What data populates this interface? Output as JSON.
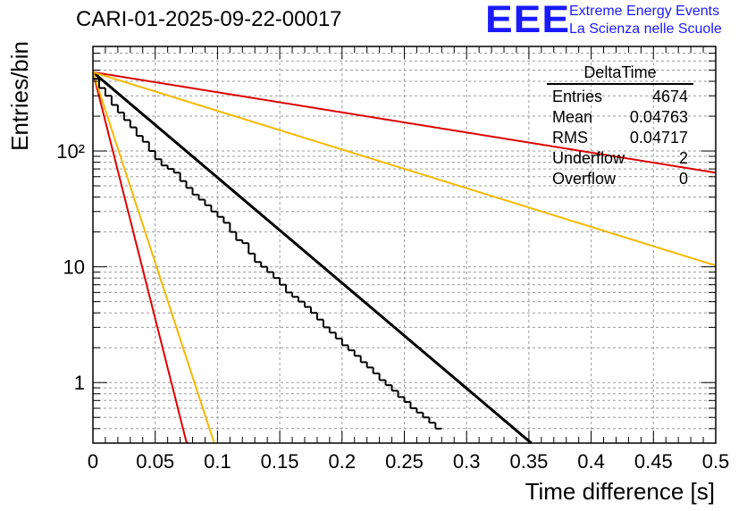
{
  "header": {
    "title": "CARI-01-2025-09-22-00017",
    "logo": "EEE",
    "logo_line1": "Extreme Energy Events",
    "logo_line2": "La Scienza nelle Scuole",
    "logo_color": "#1a1aff"
  },
  "stats": {
    "title": "DeltaTime",
    "rows": [
      {
        "label": "Entries",
        "value": "4674"
      },
      {
        "label": "Mean",
        "value": "0.04763"
      },
      {
        "label": "RMS",
        "value": "0.04717"
      },
      {
        "label": "Underflow",
        "value": "2"
      },
      {
        "label": "Overflow",
        "value": "0"
      }
    ]
  },
  "chart_data": {
    "type": "histogram",
    "title": "CARI-01-2025-09-22-00017",
    "xlabel": "Time difference [s]",
    "ylabel": "Entries/bin",
    "xlim": [
      0,
      0.5
    ],
    "ylim": [
      0.3,
      800
    ],
    "yscale": "log",
    "grid": true,
    "xticks": [
      "0",
      "0.05",
      "0.1",
      "0.15",
      "0.2",
      "0.25",
      "0.3",
      "0.35",
      "0.4",
      "0.45",
      "0.5"
    ],
    "xtick_values": [
      0,
      0.05,
      0.1,
      0.15,
      0.2,
      0.25,
      0.3,
      0.35,
      0.4,
      0.45,
      0.5
    ],
    "yticks": [
      "1",
      "10",
      "10²"
    ],
    "ytick_values": [
      1,
      10,
      100
    ],
    "bin_width": 0.005,
    "bins": [
      420,
      350,
      300,
      250,
      215,
      185,
      160,
      135,
      120,
      100,
      85,
      75,
      70,
      65,
      55,
      48,
      42,
      38,
      34,
      30,
      27,
      24,
      20,
      17,
      16,
      13,
      11,
      10,
      9,
      8,
      7,
      6,
      5.5,
      5,
      4.5,
      4,
      3.5,
      3,
      2.7,
      2.4,
      2.1,
      1.9,
      1.7,
      1.5,
      1.35,
      1.2,
      1.05,
      0.95,
      0.85,
      0.75,
      0.68,
      0.6,
      0.55,
      0.5,
      0.45,
      0.4
    ],
    "series": [
      {
        "name": "data",
        "color": "#000000"
      },
      {
        "name": "fit",
        "color": "#000000",
        "a": 480,
        "tau": 0.0477,
        "x_end": 0.352
      },
      {
        "name": "red-slow",
        "color": "#dd0000",
        "a": 480,
        "tau": 0.25
      },
      {
        "name": "yellow-slow",
        "color": "#f5b800",
        "a": 480,
        "tau": 0.13
      },
      {
        "name": "red-fast",
        "color": "#dd0000",
        "a": 480,
        "tau": 0.0102
      },
      {
        "name": "yellow-fast",
        "color": "#f5b800",
        "a": 480,
        "tau": 0.0132
      }
    ]
  }
}
